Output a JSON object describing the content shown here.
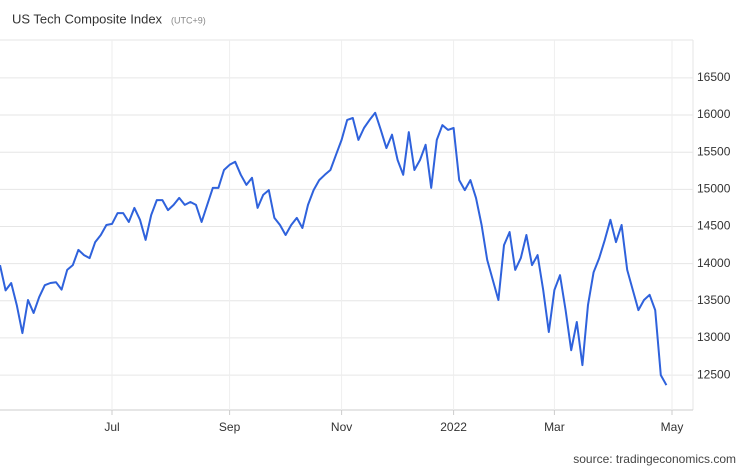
{
  "chart_data": {
    "type": "line",
    "title": "US Tech Composite Index",
    "subtitle": "(UTC+9)",
    "source": "source: tradingeconomics.com",
    "color": "#2f62dc",
    "grid": true,
    "ylim": [
      12030,
      17010
    ],
    "yticks": [
      12500,
      13000,
      13500,
      14000,
      14500,
      15000,
      15500,
      16000,
      16500
    ],
    "categories": [
      null,
      null,
      null,
      null,
      null,
      null,
      null,
      null,
      null,
      null,
      null,
      null,
      null,
      null,
      null,
      null,
      null,
      null,
      null,
      null,
      "Jul",
      null,
      null,
      null,
      null,
      null,
      null,
      null,
      null,
      null,
      null,
      null,
      null,
      null,
      null,
      null,
      null,
      null,
      null,
      null,
      null,
      "Sep",
      null,
      null,
      null,
      null,
      null,
      null,
      null,
      null,
      null,
      null,
      null,
      null,
      null,
      null,
      null,
      null,
      null,
      null,
      null,
      "Nov",
      null,
      null,
      null,
      null,
      null,
      null,
      null,
      null,
      null,
      null,
      null,
      null,
      null,
      null,
      null,
      null,
      null,
      null,
      null,
      "2022",
      null,
      null,
      null,
      null,
      null,
      null,
      null,
      null,
      null,
      null,
      null,
      null,
      null,
      null,
      null,
      null,
      null,
      "Mar",
      null,
      null,
      null,
      null,
      null,
      null,
      null,
      null,
      null,
      null,
      null,
      null,
      null,
      null,
      null,
      null,
      null,
      null,
      null,
      null,
      "May"
    ],
    "values": [
      13980,
      13640,
      13740,
      13440,
      13065,
      13510,
      13335,
      13550,
      13710,
      13740,
      13750,
      13650,
      13915,
      13980,
      14185,
      14115,
      14075,
      14290,
      14385,
      14520,
      14535,
      14680,
      14680,
      14560,
      14750,
      14590,
      14320,
      14655,
      14855,
      14855,
      14720,
      14790,
      14885,
      14790,
      14830,
      14790,
      14560,
      14790,
      15020,
      15020,
      15260,
      15330,
      15370,
      15195,
      15060,
      15155,
      14750,
      14925,
      14990,
      14615,
      14520,
      14385,
      14520,
      14615,
      14480,
      14790,
      14990,
      15125,
      15195,
      15260,
      15465,
      15665,
      15935,
      15960,
      15665,
      15825,
      15935,
      16030,
      15800,
      15555,
      15735,
      15395,
      15195,
      15770,
      15260,
      15395,
      15600,
      15020,
      15665,
      15865,
      15800,
      15825,
      15125,
      14990,
      15125,
      14885,
      14520,
      14050,
      13780,
      13510,
      14250,
      14425,
      13915,
      14075,
      14385,
      13980,
      14115,
      13645,
      13080,
      13645,
      13845,
      13375,
      12835,
      13215,
      12635,
      13445,
      13885,
      14075,
      14320,
      14590,
      14290,
      14520,
      13915,
      13645,
      13375,
      13510,
      13580,
      13375,
      12500,
      12365,
      null
    ]
  }
}
